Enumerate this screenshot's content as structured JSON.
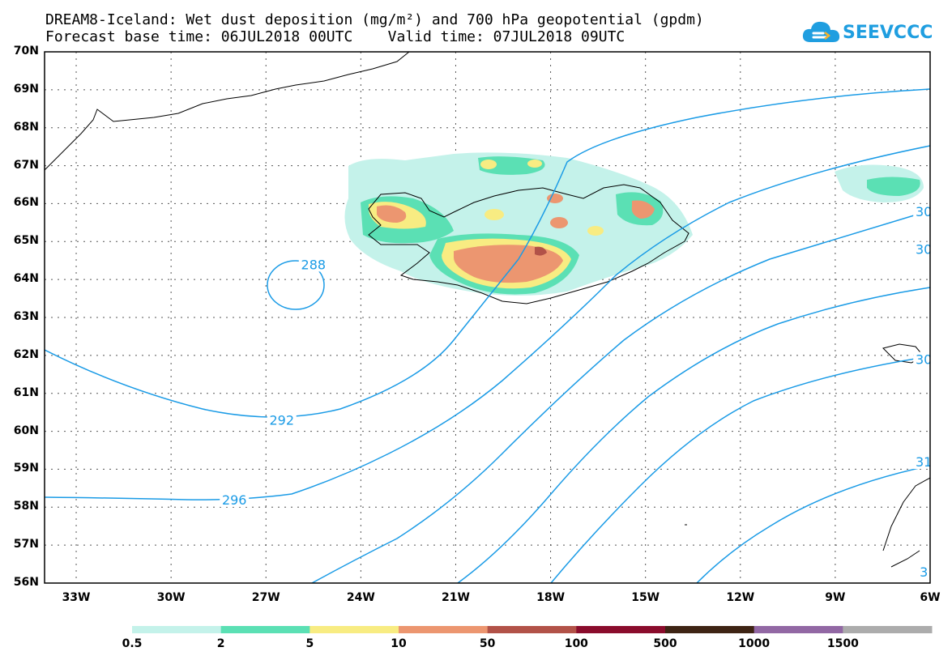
{
  "header": {
    "title_line1": "DREAM8-Iceland: Wet dust deposition (mg/m²) and 700 hPa geopotential (gpdm)",
    "title_line2": "Forecast base time: 06JUL2018 00UTC    Valid time: 07JUL2018 09UTC"
  },
  "logo": {
    "text": "SEEVCCC",
    "icon": "cloud-icon",
    "color": "#1f9ee0"
  },
  "axes": {
    "lat_labels": [
      "70N",
      "69N",
      "68N",
      "67N",
      "66N",
      "65N",
      "64N",
      "63N",
      "62N",
      "61N",
      "60N",
      "59N",
      "58N",
      "57N",
      "56N"
    ],
    "lon_labels": [
      "33W",
      "30W",
      "27W",
      "24W",
      "21W",
      "18W",
      "15W",
      "12W",
      "9W",
      "6W"
    ]
  },
  "contours": {
    "color": "#1a9be6",
    "labels": [
      {
        "text": "288",
        "lon": -25.5,
        "lat": 64.4
      },
      {
        "text": "292",
        "lon": -26.5,
        "lat": 60.3
      },
      {
        "text": "296",
        "lon": -28.0,
        "lat": 58.2
      },
      {
        "text": "30",
        "lon": -6.2,
        "lat": 65.8
      },
      {
        "text": "30",
        "lon": -6.2,
        "lat": 64.8
      },
      {
        "text": "30",
        "lon": -6.2,
        "lat": 61.9
      },
      {
        "text": "31",
        "lon": -6.2,
        "lat": 59.2
      },
      {
        "text": "3",
        "lon": -6.2,
        "lat": 56.3
      }
    ]
  },
  "colorbar": {
    "labels": [
      "0.5",
      "2",
      "5",
      "10",
      "50",
      "100",
      "500",
      "1000",
      "1500"
    ],
    "colors": [
      "#c4f2ea",
      "#5be0b4",
      "#f8ec82",
      "#ec9670",
      "#b25248",
      "#8a0c2c",
      "#3e2414",
      "#9268a4",
      "#acacac"
    ]
  }
}
